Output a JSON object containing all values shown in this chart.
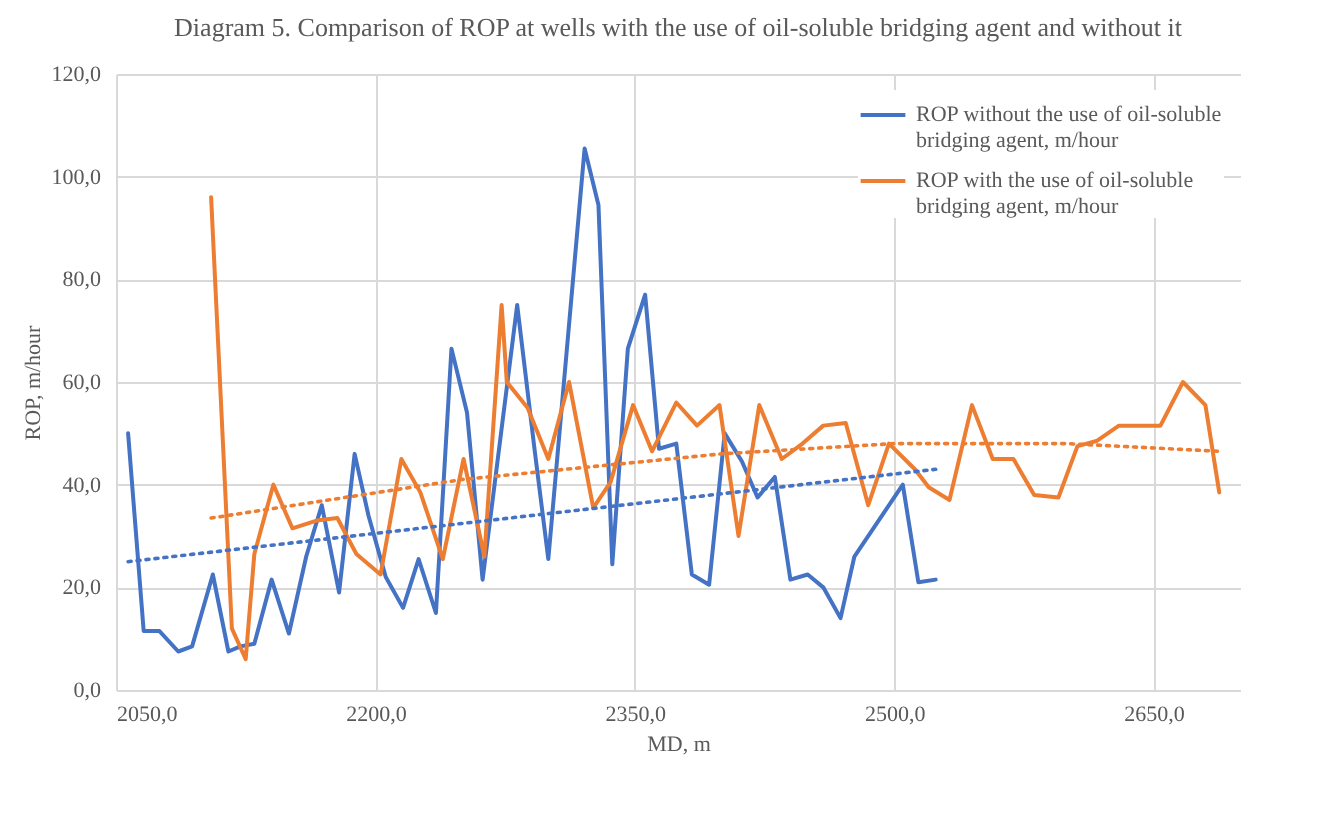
{
  "chart_data": {
    "type": "line",
    "title": "Diagram 5. Comparison of ROP at wells with the use of oil-soluble bridging agent and without it",
    "xlabel": "MD, m",
    "ylabel": "ROP, m/hour",
    "xlim": [
      2050,
      2700
    ],
    "xticks": [
      {
        "value": 2050,
        "label": "2050,0"
      },
      {
        "value": 2200,
        "label": "2200,0"
      },
      {
        "value": 2350,
        "label": "2350,0"
      },
      {
        "value": 2500,
        "label": "2500,0"
      },
      {
        "value": 2650,
        "label": "2650,0"
      }
    ],
    "ylim": [
      0,
      120
    ],
    "yticks": [
      {
        "value": 0,
        "label": "0,0"
      },
      {
        "value": 20,
        "label": "20,0"
      },
      {
        "value": 40,
        "label": "40,0"
      },
      {
        "value": 60,
        "label": "60,0"
      },
      {
        "value": 80,
        "label": "80,0"
      },
      {
        "value": 100,
        "label": "100,0"
      },
      {
        "value": 120,
        "label": "120,0"
      }
    ],
    "grid": true,
    "legend": "top right",
    "marker": "none",
    "line_style": "solid",
    "series": [
      {
        "name": "ROP without the use of oil-soluble bridging agent, m/hour",
        "color": "#4472c4",
        "x": [
          2057,
          2066,
          2075,
          2086,
          2094,
          2106,
          2115,
          2122,
          2130,
          2140,
          2150,
          2160,
          2169,
          2179,
          2188,
          2196,
          2206,
          2216,
          2225,
          2235,
          2244,
          2253,
          2262,
          2282,
          2292,
          2300,
          2321,
          2329,
          2337,
          2346,
          2356,
          2364,
          2374,
          2383,
          2393,
          2402,
          2412,
          2421,
          2431,
          2440,
          2450,
          2459,
          2469,
          2477,
          2505,
          2514,
          2524
        ],
        "values": [
          50,
          11.5,
          11.5,
          7.5,
          8.5,
          22.5,
          7.5,
          8.5,
          9,
          21.5,
          11,
          26,
          36,
          19,
          46,
          34,
          22,
          16,
          25.5,
          15,
          66.5,
          54,
          21.5,
          75,
          47,
          25.5,
          105.5,
          94.5,
          24.5,
          66.5,
          77,
          47,
          48,
          22.5,
          20.5,
          50,
          44.5,
          37.5,
          41.5,
          21.5,
          22.5,
          20,
          14,
          26,
          40,
          21,
          21.5
        ]
      },
      {
        "name": "ROP with the use of oil-soluble bridging agent, m/hour",
        "color": "#ed7d31",
        "x": [
          2105,
          2117,
          2125,
          2130,
          2141,
          2152,
          2166,
          2178,
          2189,
          2203,
          2215,
          2226,
          2239,
          2251,
          2263,
          2273,
          2276,
          2288,
          2300,
          2312,
          2326,
          2336,
          2349,
          2360,
          2374,
          2386,
          2399,
          2410,
          2422,
          2435,
          2447,
          2459,
          2472,
          2485,
          2497,
          2512,
          2520,
          2532,
          2545,
          2557,
          2569,
          2581,
          2595,
          2606,
          2617,
          2630,
          2654,
          2667,
          2680,
          2688
        ],
        "values": [
          96,
          12,
          6,
          26.5,
          40,
          31.5,
          33,
          33.5,
          26.5,
          22.5,
          45,
          38.5,
          25.5,
          45,
          26,
          75,
          60,
          55,
          45,
          60,
          35.5,
          40.5,
          55.5,
          46.5,
          56,
          51.5,
          55.5,
          30,
          55.5,
          45,
          48,
          51.5,
          52,
          36,
          48,
          43,
          39.5,
          37,
          55.5,
          45,
          45,
          38,
          37.5,
          47.5,
          48.5,
          51.5,
          51.5,
          60,
          55.5,
          38.5
        ]
      },
      {
        "type": "line",
        "line_style": "dotted",
        "color": "#4472c4",
        "x": [
          2057,
          2524
        ],
        "values": [
          25,
          43
        ]
      },
      {
        "type": "line",
        "line_style": "dotted",
        "color": "#ed7d31",
        "x": [
          2105,
          2250,
          2400,
          2500,
          2600,
          2688
        ],
        "values": [
          33.5,
          41,
          46,
          48,
          48,
          46.5
        ]
      }
    ]
  }
}
